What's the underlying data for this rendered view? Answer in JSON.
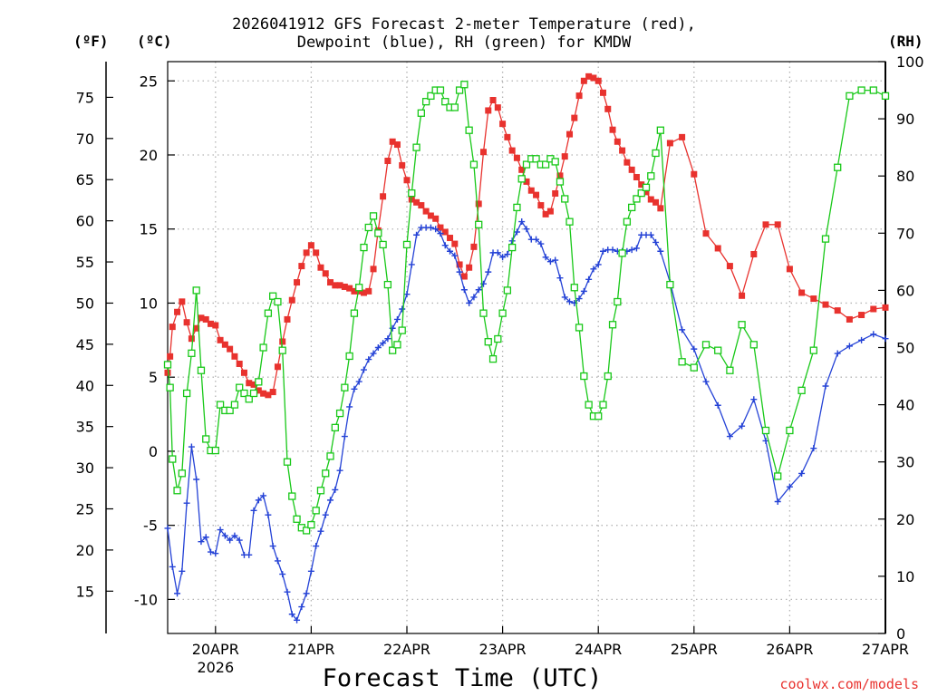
{
  "title_line1": "2026041912 GFS Forecast 2-meter Temperature (red),",
  "title_line2": "Dewpoint (blue), RH (green) for KMDW",
  "units": {
    "fahrenheit": "(ºF)",
    "celsius": "(ºC)",
    "rh": "(RH)"
  },
  "xlabel": "Forecast Time (UTC)",
  "credit": "coolwx.com/models",
  "colors": {
    "temp": "#e8322e",
    "dewpoint": "#2442d6",
    "rh": "#18c818",
    "grid": "#b4b4b4"
  },
  "chart_data": {
    "type": "line",
    "title": "2026041912 GFS Forecast 2-meter Temperature (red), Dewpoint (blue), RH (green) for KMDW",
    "xlabel": "Forecast Time (UTC)",
    "x_unit": "days since 2026-04-19 00Z",
    "xlim": [
      0.5,
      8.0
    ],
    "x_ticks": [
      {
        "x": 1,
        "label": "20APR",
        "sublabel": "2026"
      },
      {
        "x": 2,
        "label": "21APR",
        "sublabel": ""
      },
      {
        "x": 3,
        "label": "22APR",
        "sublabel": ""
      },
      {
        "x": 4,
        "label": "23APR",
        "sublabel": ""
      },
      {
        "x": 5,
        "label": "24APR",
        "sublabel": ""
      },
      {
        "x": 6,
        "label": "25APR",
        "sublabel": ""
      },
      {
        "x": 7,
        "label": "26APR",
        "sublabel": ""
      },
      {
        "x": 8,
        "label": "27APR",
        "sublabel": ""
      }
    ],
    "y_celsius": {
      "label": "(ºC)",
      "ylim": [
        -12.3,
        26.3
      ],
      "ticks": [
        -10,
        -5,
        0,
        5,
        10,
        15,
        20,
        25
      ]
    },
    "y_fahrenheit": {
      "label": "(ºF)",
      "ticks": [
        15,
        20,
        25,
        30,
        35,
        40,
        45,
        50,
        55,
        60,
        65,
        70,
        75
      ]
    },
    "y_rh": {
      "label": "(RH)",
      "ylim": [
        0,
        100
      ],
      "ticks": [
        0,
        10,
        20,
        30,
        40,
        50,
        60,
        70,
        80,
        90,
        100
      ]
    },
    "series": [
      {
        "name": "2-meter Temperature",
        "unit": "C",
        "axis": "celsius",
        "marker": "filled-square",
        "x": [
          0.5,
          0.525,
          0.55,
          0.6,
          0.65,
          0.7,
          0.75,
          0.8,
          0.85,
          0.9,
          0.95,
          1.0,
          1.05,
          1.1,
          1.15,
          1.2,
          1.25,
          1.3,
          1.35,
          1.4,
          1.45,
          1.5,
          1.55,
          1.6,
          1.65,
          1.7,
          1.75,
          1.8,
          1.85,
          1.9,
          1.95,
          2.0,
          2.05,
          2.1,
          2.15,
          2.2,
          2.25,
          2.3,
          2.35,
          2.4,
          2.45,
          2.5,
          2.55,
          2.6,
          2.65,
          2.7,
          2.75,
          2.8,
          2.85,
          2.9,
          2.95,
          3.0,
          3.05,
          3.1,
          3.15,
          3.2,
          3.25,
          3.3,
          3.35,
          3.4,
          3.45,
          3.5,
          3.55,
          3.6,
          3.65,
          3.7,
          3.75,
          3.8,
          3.85,
          3.9,
          3.95,
          4.0,
          4.05,
          4.1,
          4.15,
          4.2,
          4.25,
          4.3,
          4.35,
          4.4,
          4.45,
          4.5,
          4.55,
          4.6,
          4.65,
          4.7,
          4.75,
          4.8,
          4.85,
          4.9,
          4.95,
          5.0,
          5.05,
          5.1,
          5.15,
          5.2,
          5.25,
          5.3,
          5.35,
          5.4,
          5.45,
          5.5,
          5.55,
          5.6,
          5.65,
          5.75,
          5.875,
          6.0,
          6.125,
          6.25,
          6.375,
          6.5,
          6.625,
          6.75,
          6.875,
          7.0,
          7.125,
          7.25,
          7.375,
          7.5,
          7.625,
          7.75,
          7.875,
          8.0
        ],
        "values": [
          5.3,
          6.4,
          8.4,
          9.4,
          10.1,
          8.7,
          7.6,
          8.3,
          9.0,
          8.9,
          8.6,
          8.5,
          7.5,
          7.2,
          6.9,
          6.4,
          5.9,
          5.3,
          4.6,
          4.5,
          4.1,
          3.9,
          3.8,
          4.0,
          5.7,
          7.4,
          8.9,
          10.2,
          11.4,
          12.5,
          13.4,
          13.9,
          13.4,
          12.4,
          12.0,
          11.4,
          11.2,
          11.2,
          11.1,
          11.0,
          10.8,
          10.8,
          10.7,
          10.8,
          12.3,
          14.9,
          17.2,
          19.6,
          20.9,
          20.7,
          19.3,
          18.3,
          17.0,
          16.8,
          16.6,
          16.2,
          15.9,
          15.7,
          15.1,
          14.8,
          14.4,
          14.0,
          12.6,
          11.8,
          12.4,
          13.8,
          16.7,
          20.2,
          23.0,
          23.7,
          23.2,
          22.1,
          21.2,
          20.3,
          19.8,
          19.0,
          18.2,
          17.6,
          17.3,
          16.6,
          16.0,
          16.2,
          17.4,
          18.6,
          19.9,
          21.4,
          22.5,
          24.0,
          25.0,
          25.3,
          25.2,
          25.0,
          24.2,
          23.1,
          21.7,
          20.9,
          20.3,
          19.5,
          19.0,
          18.5,
          18.0,
          17.5,
          17.0,
          16.8,
          16.4,
          20.8,
          21.2,
          18.7,
          14.7,
          13.7,
          12.5,
          10.5,
          13.3,
          15.3,
          15.3,
          12.3,
          10.7,
          10.3,
          9.9,
          9.5,
          8.9,
          9.2,
          9.6,
          9.7
        ]
      },
      {
        "name": "Dewpoint",
        "unit": "C",
        "axis": "celsius",
        "marker": "plus",
        "x": [
          0.5,
          0.55,
          0.6,
          0.65,
          0.7,
          0.75,
          0.8,
          0.85,
          0.9,
          0.95,
          1.0,
          1.05,
          1.1,
          1.15,
          1.2,
          1.25,
          1.3,
          1.35,
          1.4,
          1.45,
          1.5,
          1.55,
          1.6,
          1.65,
          1.7,
          1.75,
          1.8,
          1.85,
          1.9,
          1.95,
          2.0,
          2.05,
          2.1,
          2.15,
          2.2,
          2.25,
          2.3,
          2.35,
          2.4,
          2.45,
          2.5,
          2.55,
          2.6,
          2.65,
          2.7,
          2.75,
          2.8,
          2.85,
          2.9,
          2.95,
          3.0,
          3.05,
          3.1,
          3.15,
          3.2,
          3.25,
          3.3,
          3.35,
          3.4,
          3.45,
          3.5,
          3.55,
          3.6,
          3.65,
          3.7,
          3.75,
          3.8,
          3.85,
          3.9,
          3.95,
          4.0,
          4.05,
          4.1,
          4.15,
          4.2,
          4.25,
          4.3,
          4.35,
          4.4,
          4.45,
          4.5,
          4.55,
          4.6,
          4.65,
          4.7,
          4.75,
          4.8,
          4.85,
          4.9,
          4.95,
          5.0,
          5.05,
          5.1,
          5.15,
          5.2,
          5.25,
          5.3,
          5.35,
          5.4,
          5.45,
          5.5,
          5.55,
          5.6,
          5.65,
          5.75,
          5.875,
          6.0,
          6.125,
          6.25,
          6.375,
          6.5,
          6.625,
          6.75,
          6.875,
          7.0,
          7.125,
          7.25,
          7.375,
          7.5,
          7.625,
          7.75,
          7.875,
          8.0
        ],
        "values": [
          -5.2,
          -7.8,
          -9.6,
          -8.1,
          -3.5,
          0.3,
          -1.9,
          -6.1,
          -5.8,
          -6.8,
          -6.9,
          -5.3,
          -5.7,
          -6.0,
          -5.7,
          -6.0,
          -7.0,
          -7.0,
          -4.0,
          -3.3,
          -3.0,
          -4.3,
          -6.4,
          -7.4,
          -8.3,
          -9.5,
          -11.0,
          -11.4,
          -10.5,
          -9.6,
          -8.1,
          -6.4,
          -5.4,
          -4.3,
          -3.3,
          -2.6,
          -1.3,
          1.0,
          3.0,
          4.2,
          4.7,
          5.5,
          6.2,
          6.6,
          7.0,
          7.3,
          7.6,
          8.3,
          8.9,
          9.6,
          10.6,
          12.6,
          14.6,
          15.1,
          15.1,
          15.1,
          15.0,
          14.7,
          13.9,
          13.5,
          13.2,
          12.1,
          10.9,
          10.0,
          10.4,
          10.9,
          11.3,
          12.1,
          13.4,
          13.4,
          13.1,
          13.3,
          14.2,
          14.8,
          15.5,
          15.0,
          14.3,
          14.3,
          14.0,
          13.1,
          12.8,
          12.9,
          11.7,
          10.4,
          10.1,
          10.0,
          10.3,
          10.8,
          11.6,
          12.3,
          12.6,
          13.5,
          13.6,
          13.6,
          13.5,
          13.5,
          13.5,
          13.6,
          13.7,
          14.6,
          14.6,
          14.6,
          14.1,
          13.5,
          11.4,
          8.2,
          6.9,
          4.7,
          3.1,
          1.0,
          1.7,
          3.5,
          0.7,
          -3.4,
          -2.4,
          -1.5,
          0.2,
          4.4,
          6.6,
          7.1,
          7.5,
          7.9,
          7.6
        ]
      },
      {
        "name": "RH",
        "unit": "%",
        "axis": "rh",
        "marker": "open-square",
        "x": [
          0.5,
          0.525,
          0.55,
          0.6,
          0.65,
          0.7,
          0.75,
          0.8,
          0.85,
          0.9,
          0.95,
          1.0,
          1.05,
          1.1,
          1.15,
          1.2,
          1.25,
          1.3,
          1.35,
          1.4,
          1.45,
          1.5,
          1.55,
          1.6,
          1.65,
          1.7,
          1.75,
          1.8,
          1.85,
          1.9,
          1.95,
          2.0,
          2.05,
          2.1,
          2.15,
          2.2,
          2.25,
          2.3,
          2.35,
          2.4,
          2.45,
          2.5,
          2.55,
          2.6,
          2.65,
          2.7,
          2.75,
          2.8,
          2.85,
          2.9,
          2.95,
          3.0,
          3.05,
          3.1,
          3.15,
          3.2,
          3.25,
          3.3,
          3.35,
          3.4,
          3.45,
          3.5,
          3.55,
          3.6,
          3.65,
          3.7,
          3.75,
          3.8,
          3.85,
          3.9,
          3.95,
          4.0,
          4.05,
          4.1,
          4.15,
          4.2,
          4.25,
          4.3,
          4.35,
          4.4,
          4.45,
          4.5,
          4.55,
          4.6,
          4.65,
          4.7,
          4.75,
          4.8,
          4.85,
          4.9,
          4.95,
          5.0,
          5.05,
          5.1,
          5.15,
          5.2,
          5.25,
          5.3,
          5.35,
          5.4,
          5.45,
          5.5,
          5.55,
          5.6,
          5.65,
          5.75,
          5.875,
          6.0,
          6.125,
          6.25,
          6.375,
          6.5,
          6.625,
          6.75,
          6.875,
          7.0,
          7.125,
          7.25,
          7.375,
          7.5,
          7.625,
          7.75,
          7.875,
          8.0
        ],
        "values": [
          47,
          43,
          30.5,
          25,
          28,
          42,
          49,
          60,
          46,
          34,
          32,
          32,
          40,
          39,
          39,
          40,
          43,
          42,
          41,
          42,
          44,
          50,
          56,
          59,
          58,
          49.5,
          30,
          24,
          20,
          18.5,
          18,
          19,
          21.5,
          25,
          28,
          31,
          36,
          38.5,
          43,
          48.5,
          56,
          60.5,
          67.5,
          71,
          73,
          70,
          68,
          61,
          49.5,
          50.5,
          53,
          68,
          77,
          85,
          91,
          93,
          94,
          95,
          95,
          93,
          92,
          92,
          95,
          96,
          88,
          82,
          71.5,
          56,
          51,
          48,
          51.5,
          56,
          60,
          67.5,
          74.5,
          79.5,
          82,
          83,
          83,
          82,
          82,
          83,
          82.5,
          79,
          76,
          72,
          60.5,
          53.5,
          45,
          40,
          38,
          38,
          40,
          45,
          54,
          58,
          66.5,
          72,
          74.5,
          76,
          77,
          78,
          80,
          84,
          88,
          61,
          47.5,
          46.5,
          50.5,
          49.5,
          46,
          54,
          50.5,
          35.5,
          27.5,
          35.5,
          42.5,
          49.5,
          69,
          81.5,
          94,
          95,
          95,
          94
        ]
      }
    ]
  }
}
